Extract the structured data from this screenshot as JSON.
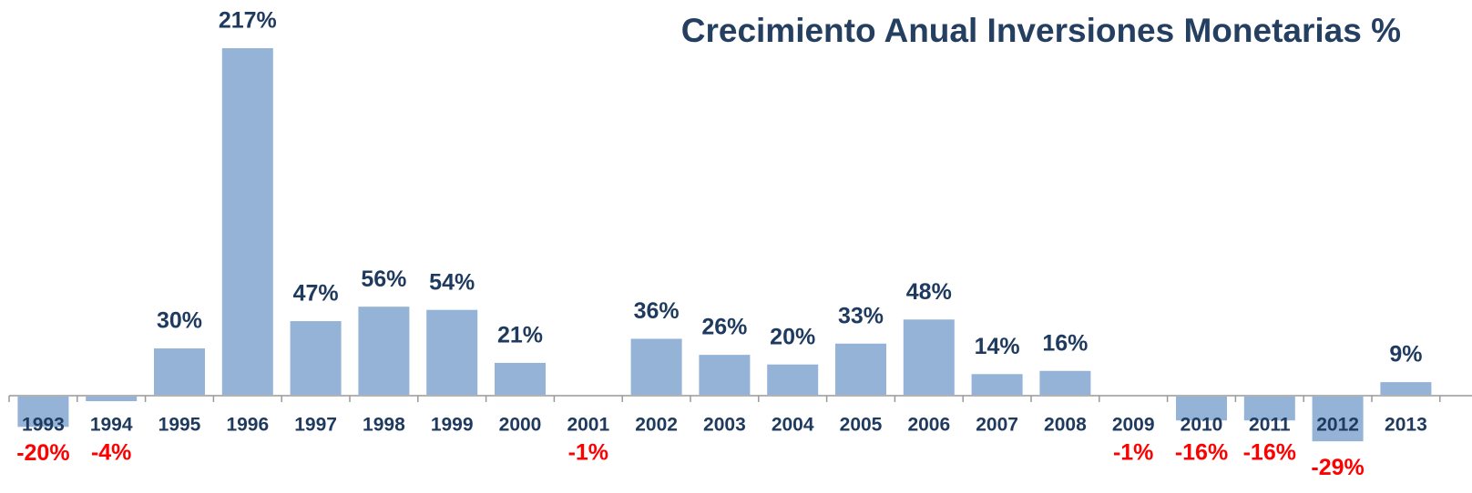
{
  "chart_data": {
    "type": "bar",
    "title": "Crecimiento Anual Inversiones Monetarias %",
    "categories": [
      "1993",
      "1994",
      "1995",
      "1996",
      "1997",
      "1998",
      "1999",
      "2000",
      "2001",
      "2002",
      "2003",
      "2004",
      "2005",
      "2006",
      "2007",
      "2008",
      "2009",
      "2010",
      "2011",
      "2012",
      "2013"
    ],
    "values": [
      -20,
      -4,
      30,
      217,
      47,
      56,
      54,
      21,
      -1,
      36,
      26,
      20,
      33,
      48,
      14,
      16,
      -1,
      -16,
      -16,
      -29,
      9
    ],
    "value_labels": [
      "-20%",
      "-4%",
      "30%",
      "217%",
      "47%",
      "56%",
      "54%",
      "21%",
      "-1%",
      "36%",
      "26%",
      "20%",
      "33%",
      "48%",
      "14%",
      "16%",
      "-1%",
      "-16%",
      "-16%",
      "-29%",
      "9%"
    ],
    "color": "#95b3d7",
    "positive_label_color": "#1f3a5f",
    "negative_label_color": "#ff0000"
  }
}
